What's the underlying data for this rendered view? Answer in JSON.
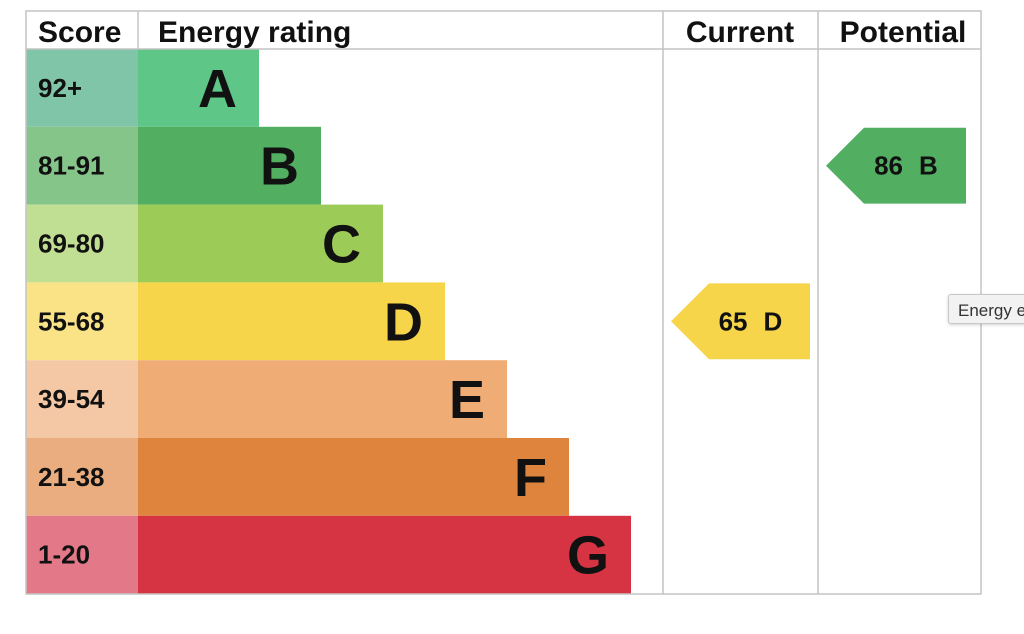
{
  "chart_data": {
    "type": "table",
    "headers": {
      "score": "Score",
      "rating": "Energy rating",
      "current": "Current",
      "potential": "Potential"
    },
    "bands": [
      {
        "score": "92+",
        "letter": "A",
        "color": "#5ec686",
        "score_color": "#80c5a7"
      },
      {
        "score": "81-91",
        "letter": "B",
        "color": "#52ae61",
        "score_color": "#86c58a"
      },
      {
        "score": "69-80",
        "letter": "C",
        "color": "#9dcb58",
        "score_color": "#c1df93"
      },
      {
        "score": "55-68",
        "letter": "D",
        "color": "#f7d54b",
        "score_color": "#f9e386"
      },
      {
        "score": "39-54",
        "letter": "E",
        "color": "#efac74",
        "score_color": "#f4c8a4"
      },
      {
        "score": "21-38",
        "letter": "F",
        "color": "#df843c",
        "score_color": "#e9ad7f"
      },
      {
        "score": "1-20",
        "letter": "G",
        "color": "#d63442",
        "score_color": "#e27888"
      }
    ],
    "current": {
      "value": 65,
      "letter": "D",
      "color": "#f7d54b"
    },
    "potential": {
      "value": 86,
      "letter": "B",
      "color": "#52ae61"
    }
  },
  "tooltip": {
    "text": "Energy e"
  }
}
